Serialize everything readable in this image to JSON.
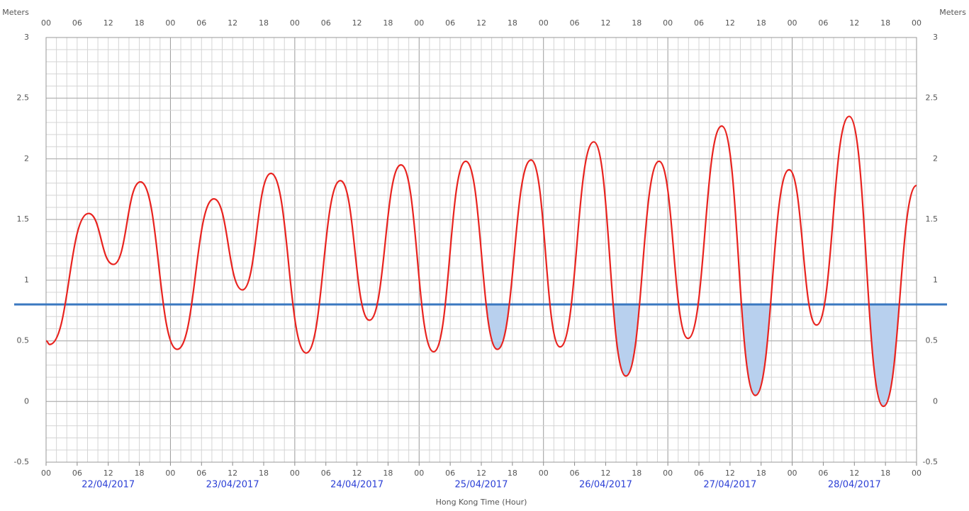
{
  "chart_data": {
    "type": "line",
    "y_axis_label": "Meters",
    "x_axis_label": "Hong Kong Time (Hour)",
    "xlim": [
      0,
      168
    ],
    "xticks": [
      {
        "value": 0,
        "label": "00"
      },
      {
        "value": 6,
        "label": "06"
      },
      {
        "value": 12,
        "label": "12"
      },
      {
        "value": 18,
        "label": "18"
      },
      {
        "value": 24,
        "label": "00"
      },
      {
        "value": 30,
        "label": "06"
      },
      {
        "value": 36,
        "label": "12"
      },
      {
        "value": 42,
        "label": "18"
      },
      {
        "value": 48,
        "label": "00"
      },
      {
        "value": 54,
        "label": "06"
      },
      {
        "value": 60,
        "label": "12"
      },
      {
        "value": 66,
        "label": "18"
      },
      {
        "value": 72,
        "label": "00"
      },
      {
        "value": 78,
        "label": "06"
      },
      {
        "value": 84,
        "label": "12"
      },
      {
        "value": 90,
        "label": "18"
      },
      {
        "value": 96,
        "label": "00"
      },
      {
        "value": 102,
        "label": "06"
      },
      {
        "value": 108,
        "label": "12"
      },
      {
        "value": 114,
        "label": "18"
      },
      {
        "value": 120,
        "label": "00"
      },
      {
        "value": 126,
        "label": "06"
      },
      {
        "value": 132,
        "label": "12"
      },
      {
        "value": 138,
        "label": "18"
      },
      {
        "value": 144,
        "label": "00"
      },
      {
        "value": 150,
        "label": "06"
      },
      {
        "value": 156,
        "label": "12"
      },
      {
        "value": 162,
        "label": "18"
      },
      {
        "value": 168,
        "label": "00"
      }
    ],
    "dates": [
      {
        "value": 12,
        "label": "22/04/2017"
      },
      {
        "value": 36,
        "label": "23/04/2017"
      },
      {
        "value": 60,
        "label": "24/04/2017"
      },
      {
        "value": 84,
        "label": "25/04/2017"
      },
      {
        "value": 108,
        "label": "26/04/2017"
      },
      {
        "value": 132,
        "label": "27/04/2017"
      },
      {
        "value": 156,
        "label": "28/04/2017"
      }
    ],
    "ylim": [
      -0.5,
      3
    ],
    "yticks": [
      -0.5,
      0,
      0.5,
      1,
      1.5,
      2,
      2.5,
      3
    ],
    "minor_x_step": 2,
    "minor_y_step": 0.1,
    "day_hours": 24,
    "grid": true,
    "x": [
      0,
      0.7,
      8.2,
      13,
      18.2,
      25.3,
      32.4,
      37.9,
      43.4,
      50.2,
      56.8,
      62.4,
      68.5,
      74.8,
      81,
      87.1,
      93.6,
      99.2,
      105.7,
      111.9,
      118.3,
      123.9,
      130.4,
      136.9,
      143.4,
      148.7,
      155,
      161.6,
      168
    ],
    "series": [
      {
        "color": "#e8231f",
        "values": [
          0.5,
          0.47,
          1.55,
          1.13,
          1.81,
          0.43,
          1.67,
          0.92,
          1.88,
          0.4,
          1.82,
          0.67,
          1.95,
          0.41,
          1.98,
          0.43,
          1.99,
          0.45,
          2.14,
          0.21,
          1.98,
          0.52,
          2.27,
          0.05,
          1.91,
          0.63,
          2.35,
          -0.04,
          1.78
        ]
      }
    ],
    "threshold": {
      "value": 0.8,
      "color": "#3a78c0"
    },
    "shaded_periods": [
      [
        81,
        93
      ],
      [
        106,
        118
      ],
      [
        131,
        143
      ],
      [
        156,
        168
      ]
    ],
    "shade_color": "#b8d0ee"
  }
}
